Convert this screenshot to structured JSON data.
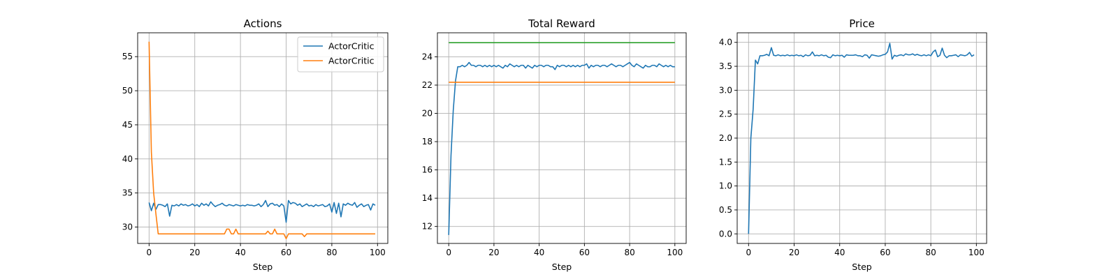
{
  "chart_data": [
    {
      "type": "line",
      "title": "Actions",
      "xlabel": "Step",
      "ylabel": "",
      "xlim": [
        -5,
        104.5
      ],
      "ylim": [
        27.6,
        58.5
      ],
      "xticks": [
        0,
        20,
        40,
        60,
        80,
        100
      ],
      "yticks": [
        30,
        35,
        40,
        45,
        50,
        55
      ],
      "grid": true,
      "legend": "top-right",
      "series": [
        {
          "name": "ActorCritic",
          "color": "#1f77b4",
          "x": [
            0,
            1,
            2,
            3,
            4,
            5,
            6,
            7,
            8,
            9,
            10,
            11,
            12,
            13,
            14,
            15,
            16,
            17,
            18,
            19,
            20,
            21,
            22,
            23,
            24,
            25,
            26,
            27,
            28,
            29,
            30,
            31,
            32,
            33,
            34,
            35,
            36,
            37,
            38,
            39,
            40,
            41,
            42,
            43,
            44,
            45,
            46,
            47,
            48,
            49,
            50,
            51,
            52,
            53,
            54,
            55,
            56,
            57,
            58,
            59,
            60,
            61,
            62,
            63,
            64,
            65,
            66,
            67,
            68,
            69,
            70,
            71,
            72,
            73,
            74,
            75,
            76,
            77,
            78,
            79,
            80,
            81,
            82,
            83,
            84,
            85,
            86,
            87,
            88,
            89,
            90,
            91,
            92,
            93,
            94,
            95,
            96,
            97,
            98,
            99
          ],
          "y": [
            33.6,
            32.4,
            33.5,
            32.6,
            33.3,
            33.3,
            33.2,
            33.0,
            33.4,
            31.6,
            33.2,
            33.1,
            33.3,
            33.1,
            33.4,
            33.2,
            33.3,
            33.1,
            33.2,
            33.4,
            33.1,
            33.3,
            33.0,
            33.5,
            33.2,
            33.4,
            33.1,
            33.7,
            33.3,
            33.0,
            33.2,
            33.3,
            33.5,
            33.2,
            33.1,
            33.3,
            33.2,
            33.1,
            33.3,
            33.2,
            33.1,
            33.2,
            33.1,
            33.3,
            33.2,
            33.2,
            33.1,
            33.2,
            33.4,
            33.0,
            33.3,
            33.9,
            33.0,
            33.4,
            33.5,
            33.2,
            33.3,
            33.0,
            33.4,
            33.1,
            30.7,
            33.9,
            33.4,
            33.6,
            33.5,
            33.2,
            33.4,
            33.0,
            33.2,
            33.4,
            33.1,
            33.2,
            33.0,
            33.3,
            33.1,
            33.2,
            33.3,
            33.0,
            33.1,
            33.4,
            32.2,
            33.6,
            32.0,
            33.5,
            31.5,
            33.4,
            33.2,
            33.5,
            33.3,
            33.2,
            33.6,
            32.9,
            33.2,
            33.4,
            33.0,
            33.2,
            33.3,
            32.5,
            33.4,
            33.2
          ]
        },
        {
          "name": "ActorCritic",
          "color": "#ff7f0e",
          "x": [
            0,
            1,
            2,
            3,
            4,
            5,
            6,
            7,
            8,
            9,
            10,
            11,
            12,
            13,
            14,
            15,
            16,
            17,
            18,
            19,
            20,
            21,
            22,
            23,
            24,
            25,
            26,
            27,
            28,
            29,
            30,
            31,
            32,
            33,
            34,
            35,
            36,
            37,
            38,
            39,
            40,
            41,
            42,
            43,
            44,
            45,
            46,
            47,
            48,
            49,
            50,
            51,
            52,
            53,
            54,
            55,
            56,
            57,
            58,
            59,
            60,
            61,
            62,
            63,
            64,
            65,
            66,
            67,
            68,
            69,
            70,
            71,
            72,
            73,
            74,
            75,
            76,
            77,
            78,
            79,
            80,
            81,
            82,
            83,
            84,
            85,
            86,
            87,
            88,
            89,
            90,
            91,
            92,
            93,
            94,
            95,
            96,
            97,
            98,
            99
          ],
          "y": [
            57.2,
            41.0,
            35.0,
            31.9,
            29.0,
            29.0,
            29.0,
            29.0,
            29.0,
            29.0,
            29.0,
            29.0,
            29.0,
            29.0,
            29.0,
            29.0,
            29.0,
            29.0,
            29.0,
            29.0,
            29.0,
            29.0,
            29.0,
            29.0,
            29.0,
            29.0,
            29.0,
            29.0,
            29.0,
            29.0,
            29.0,
            29.0,
            29.0,
            29.0,
            29.7,
            29.7,
            29.0,
            29.0,
            29.7,
            29.0,
            29.0,
            29.0,
            29.0,
            29.0,
            29.0,
            29.0,
            29.0,
            29.0,
            29.0,
            29.0,
            29.0,
            29.0,
            29.4,
            29.0,
            29.0,
            29.7,
            29.0,
            29.0,
            29.0,
            29.0,
            28.3,
            29.0,
            29.0,
            29.0,
            29.0,
            29.0,
            29.0,
            29.0,
            28.6,
            29.0,
            29.0,
            29.0,
            29.0,
            29.0,
            29.0,
            29.0,
            29.0,
            29.0,
            29.0,
            29.0,
            29.0,
            29.0,
            29.0,
            29.0,
            29.0,
            29.0,
            29.0,
            29.0,
            29.0,
            29.0,
            29.0,
            29.0,
            29.0,
            29.0,
            29.0,
            29.0,
            29.0,
            29.0,
            29.0,
            29.0
          ]
        }
      ]
    },
    {
      "type": "line",
      "title": "Total Reward",
      "xlabel": "Step",
      "ylabel": "",
      "xlim": [
        -5,
        105
      ],
      "ylim": [
        10.8,
        25.7
      ],
      "xticks": [
        0,
        20,
        40,
        60,
        80,
        100
      ],
      "yticks": [
        12,
        14,
        16,
        18,
        20,
        22,
        24
      ],
      "grid": true,
      "legend": "none",
      "series": [
        {
          "color": "#1f77b4",
          "x": [
            0,
            1,
            2,
            3,
            4,
            5,
            6,
            7,
            8,
            9,
            10,
            11,
            12,
            13,
            14,
            15,
            16,
            17,
            18,
            19,
            20,
            21,
            22,
            23,
            24,
            25,
            26,
            27,
            28,
            29,
            30,
            31,
            32,
            33,
            34,
            35,
            36,
            37,
            38,
            39,
            40,
            41,
            42,
            43,
            44,
            45,
            46,
            47,
            48,
            49,
            50,
            51,
            52,
            53,
            54,
            55,
            56,
            57,
            58,
            59,
            60,
            61,
            62,
            63,
            64,
            65,
            66,
            67,
            68,
            69,
            70,
            71,
            72,
            73,
            74,
            75,
            76,
            77,
            78,
            79,
            80,
            81,
            82,
            83,
            84,
            85,
            86,
            87,
            88,
            89,
            90,
            91,
            92,
            93,
            94,
            95,
            96,
            97,
            98,
            99,
            100
          ],
          "y": [
            11.4,
            17.0,
            20.2,
            22.3,
            23.3,
            23.3,
            23.4,
            23.3,
            23.4,
            23.6,
            23.4,
            23.4,
            23.3,
            23.4,
            23.4,
            23.3,
            23.4,
            23.3,
            23.4,
            23.3,
            23.4,
            23.3,
            23.4,
            23.3,
            23.2,
            23.4,
            23.3,
            23.5,
            23.4,
            23.3,
            23.4,
            23.3,
            23.4,
            23.4,
            23.2,
            23.4,
            23.3,
            23.2,
            23.4,
            23.3,
            23.4,
            23.4,
            23.3,
            23.4,
            23.4,
            23.3,
            23.3,
            23.1,
            23.4,
            23.3,
            23.4,
            23.4,
            23.3,
            23.4,
            23.3,
            23.4,
            23.3,
            23.4,
            23.3,
            23.4,
            23.4,
            23.5,
            23.2,
            23.4,
            23.3,
            23.4,
            23.4,
            23.3,
            23.4,
            23.4,
            23.3,
            23.4,
            23.5,
            23.4,
            23.3,
            23.4,
            23.4,
            23.3,
            23.4,
            23.5,
            23.6,
            23.4,
            23.3,
            23.5,
            23.4,
            23.3,
            23.2,
            23.4,
            23.3,
            23.3,
            23.4,
            23.4,
            23.3,
            23.5,
            23.4,
            23.3,
            23.4,
            23.3,
            23.4,
            23.3,
            23.3
          ]
        },
        {
          "color": "#ff7f0e",
          "x": [
            0,
            100
          ],
          "y": [
            22.2,
            22.2
          ]
        },
        {
          "color": "#2ca02c",
          "x": [
            0,
            100
          ],
          "y": [
            25.0,
            25.0
          ]
        }
      ]
    },
    {
      "type": "line",
      "title": "Price",
      "xlabel": "Step",
      "ylabel": "",
      "xlim": [
        -5,
        104.5
      ],
      "ylim": [
        -0.2,
        4.2
      ],
      "xticks": [
        0,
        20,
        40,
        60,
        80,
        100
      ],
      "yticks": [
        0.0,
        0.5,
        1.0,
        1.5,
        2.0,
        2.5,
        3.0,
        3.5,
        4.0
      ],
      "grid": true,
      "legend": "none",
      "series": [
        {
          "color": "#1f77b4",
          "x": [
            0,
            1,
            2,
            3,
            4,
            5,
            6,
            7,
            8,
            9,
            10,
            11,
            12,
            13,
            14,
            15,
            16,
            17,
            18,
            19,
            20,
            21,
            22,
            23,
            24,
            25,
            26,
            27,
            28,
            29,
            30,
            31,
            32,
            33,
            34,
            35,
            36,
            37,
            38,
            39,
            40,
            41,
            42,
            43,
            44,
            45,
            46,
            47,
            48,
            49,
            50,
            51,
            52,
            53,
            54,
            55,
            56,
            57,
            58,
            59,
            60,
            61,
            62,
            63,
            64,
            65,
            66,
            67,
            68,
            69,
            70,
            71,
            72,
            73,
            74,
            75,
            76,
            77,
            78,
            79,
            80,
            81,
            82,
            83,
            84,
            85,
            86,
            87,
            88,
            89,
            90,
            91,
            92,
            93,
            94,
            95,
            96,
            97,
            98,
            99
          ],
          "y": [
            0.0,
            2.0,
            2.6,
            3.63,
            3.55,
            3.72,
            3.72,
            3.73,
            3.75,
            3.72,
            3.89,
            3.73,
            3.72,
            3.74,
            3.72,
            3.73,
            3.72,
            3.74,
            3.72,
            3.73,
            3.72,
            3.74,
            3.72,
            3.73,
            3.7,
            3.74,
            3.72,
            3.73,
            3.8,
            3.72,
            3.73,
            3.72,
            3.74,
            3.72,
            3.73,
            3.69,
            3.68,
            3.74,
            3.72,
            3.73,
            3.72,
            3.73,
            3.69,
            3.74,
            3.73,
            3.73,
            3.73,
            3.74,
            3.72,
            3.72,
            3.7,
            3.74,
            3.73,
            3.67,
            3.74,
            3.73,
            3.72,
            3.71,
            3.72,
            3.74,
            3.75,
            3.8,
            3.98,
            3.65,
            3.73,
            3.71,
            3.73,
            3.74,
            3.72,
            3.76,
            3.74,
            3.74,
            3.76,
            3.73,
            3.75,
            3.73,
            3.72,
            3.74,
            3.72,
            3.74,
            3.72,
            3.8,
            3.84,
            3.7,
            3.73,
            3.88,
            3.73,
            3.68,
            3.72,
            3.72,
            3.73,
            3.74,
            3.7,
            3.74,
            3.73,
            3.72,
            3.74,
            3.79,
            3.71,
            3.74
          ]
        }
      ]
    }
  ]
}
